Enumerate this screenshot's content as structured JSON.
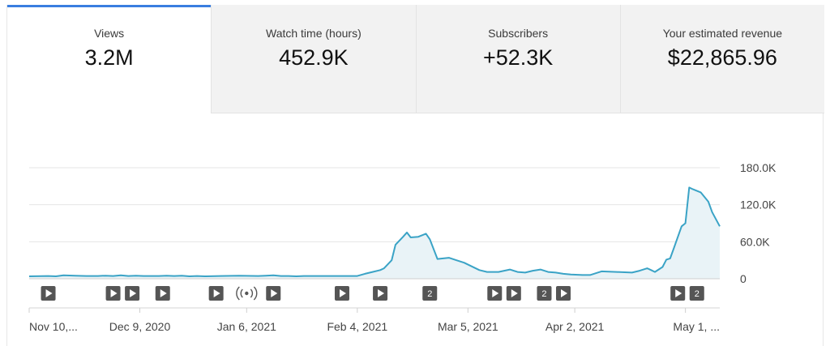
{
  "tabs": [
    {
      "label": "Views",
      "value": "3.2M",
      "active": true
    },
    {
      "label": "Watch time (hours)",
      "value": "452.9K",
      "active": false
    },
    {
      "label": "Subscribers",
      "value": "+52.3K",
      "active": false
    },
    {
      "label": "Your estimated revenue",
      "value": "$22,865.96",
      "active": false
    }
  ],
  "colors": {
    "line": "#3aa3c6",
    "area": "#e9f3f7",
    "grid": "#e4e4e4",
    "tab_accent": "#3a7ee0",
    "marker": "#555555"
  },
  "chart_data": {
    "type": "area",
    "xlim": [
      0,
      181
    ],
    "ylim": [
      0,
      180000
    ],
    "y_ticks": [
      {
        "value": 180000,
        "label": "180.0K"
      },
      {
        "value": 120000,
        "label": "120.0K"
      },
      {
        "value": 60000,
        "label": "60.0K"
      },
      {
        "value": 0,
        "label": "0"
      }
    ],
    "x_ticks": [
      {
        "x": 0,
        "label": "Nov 10,..."
      },
      {
        "x": 29,
        "label": "Dec 9, 2020"
      },
      {
        "x": 57,
        "label": "Jan 6, 2021"
      },
      {
        "x": 86,
        "label": "Feb 4, 2021"
      },
      {
        "x": 115,
        "label": "Mar 5, 2021"
      },
      {
        "x": 143,
        "label": "Apr 2, 2021"
      },
      {
        "x": 172,
        "label": "May 1, ..."
      }
    ],
    "series": [
      {
        "x": [
          0,
          5,
          7,
          9,
          12,
          15,
          18,
          20,
          22,
          24,
          26,
          28,
          30,
          34,
          36,
          38,
          40,
          42,
          44,
          46,
          50,
          55,
          60,
          62,
          64,
          66,
          68,
          70,
          72,
          75,
          80,
          86,
          88,
          90,
          92,
          93,
          95,
          96,
          98,
          99,
          100,
          102,
          104,
          105,
          107,
          110,
          112,
          114,
          118,
          120,
          123,
          126,
          128,
          130,
          132,
          134,
          136,
          138,
          140,
          142,
          145,
          147,
          150,
          154,
          158,
          160,
          162,
          163,
          164,
          166,
          167,
          168,
          169,
          171,
          172,
          173,
          174,
          176,
          178,
          179,
          181
        ],
        "y": [
          4000,
          4500,
          4000,
          5500,
          5000,
          4500,
          4500,
          5000,
          4500,
          5500,
          4500,
          5000,
          4500,
          4500,
          5000,
          4500,
          5000,
          4000,
          4500,
          4000,
          4500,
          5000,
          4500,
          5000,
          5500,
          4500,
          4500,
          4000,
          4500,
          4500,
          4500,
          4500,
          8000,
          11000,
          14000,
          17000,
          30000,
          55000,
          68000,
          75000,
          67000,
          68000,
          73000,
          64000,
          32000,
          34000,
          30000,
          26000,
          14000,
          11000,
          11000,
          15000,
          11000,
          10000,
          13000,
          15000,
          11000,
          10000,
          8000,
          7000,
          6000,
          6000,
          12000,
          11000,
          10000,
          13000,
          17000,
          14000,
          11000,
          19000,
          31000,
          33000,
          50000,
          85000,
          90000,
          148000,
          145000,
          140000,
          125000,
          108000,
          85000
        ]
      }
    ],
    "markers": [
      {
        "x": 5,
        "type": "play"
      },
      {
        "x": 22,
        "type": "play"
      },
      {
        "x": 27,
        "type": "play"
      },
      {
        "x": 35,
        "type": "play"
      },
      {
        "x": 49,
        "type": "play"
      },
      {
        "x": 57,
        "type": "live"
      },
      {
        "x": 64,
        "type": "play"
      },
      {
        "x": 82,
        "type": "play"
      },
      {
        "x": 92,
        "type": "play"
      },
      {
        "x": 105,
        "type": "count",
        "label": "2"
      },
      {
        "x": 122,
        "type": "play"
      },
      {
        "x": 127,
        "type": "play"
      },
      {
        "x": 135,
        "type": "count",
        "label": "2"
      },
      {
        "x": 140,
        "type": "play"
      },
      {
        "x": 170,
        "type": "play"
      },
      {
        "x": 175,
        "type": "count",
        "label": "2"
      }
    ],
    "grid": true,
    "legend": "none"
  }
}
